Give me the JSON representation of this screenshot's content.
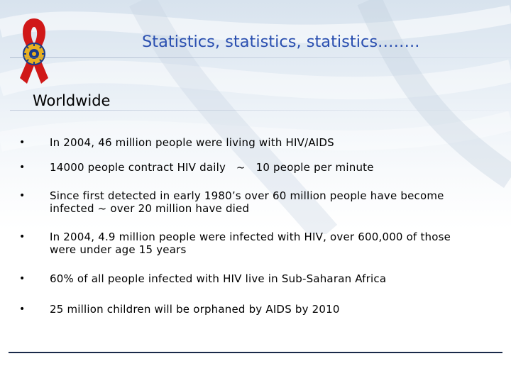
{
  "header": {
    "title": "Statistics, statistics, statistics……..",
    "title_color": "#2a4fb0"
  },
  "main": {
    "section_title": "Worldwide",
    "bullet_symbol": "•",
    "bullets": [
      "In 2004, 46 million people were living with HIV/AIDS",
      "14000 people contract HIV daily   ~   10 people per minute",
      "Since first detected in early 1980’s over 60 million people have become infected  ~  over 20 million have died",
      "In 2004, 4.9 million people were infected with HIV, over 600,000 of those were under age 15 years",
      "60% of all people infected with HIV live in Sub-Saharan Africa",
      "25 million children will be orphaned by AIDS by 2010"
    ]
  },
  "logo": {
    "name": "rotary-red-ribbon-icon",
    "ribbon_color": "#d01818",
    "wheel_color": "#e8b020"
  }
}
